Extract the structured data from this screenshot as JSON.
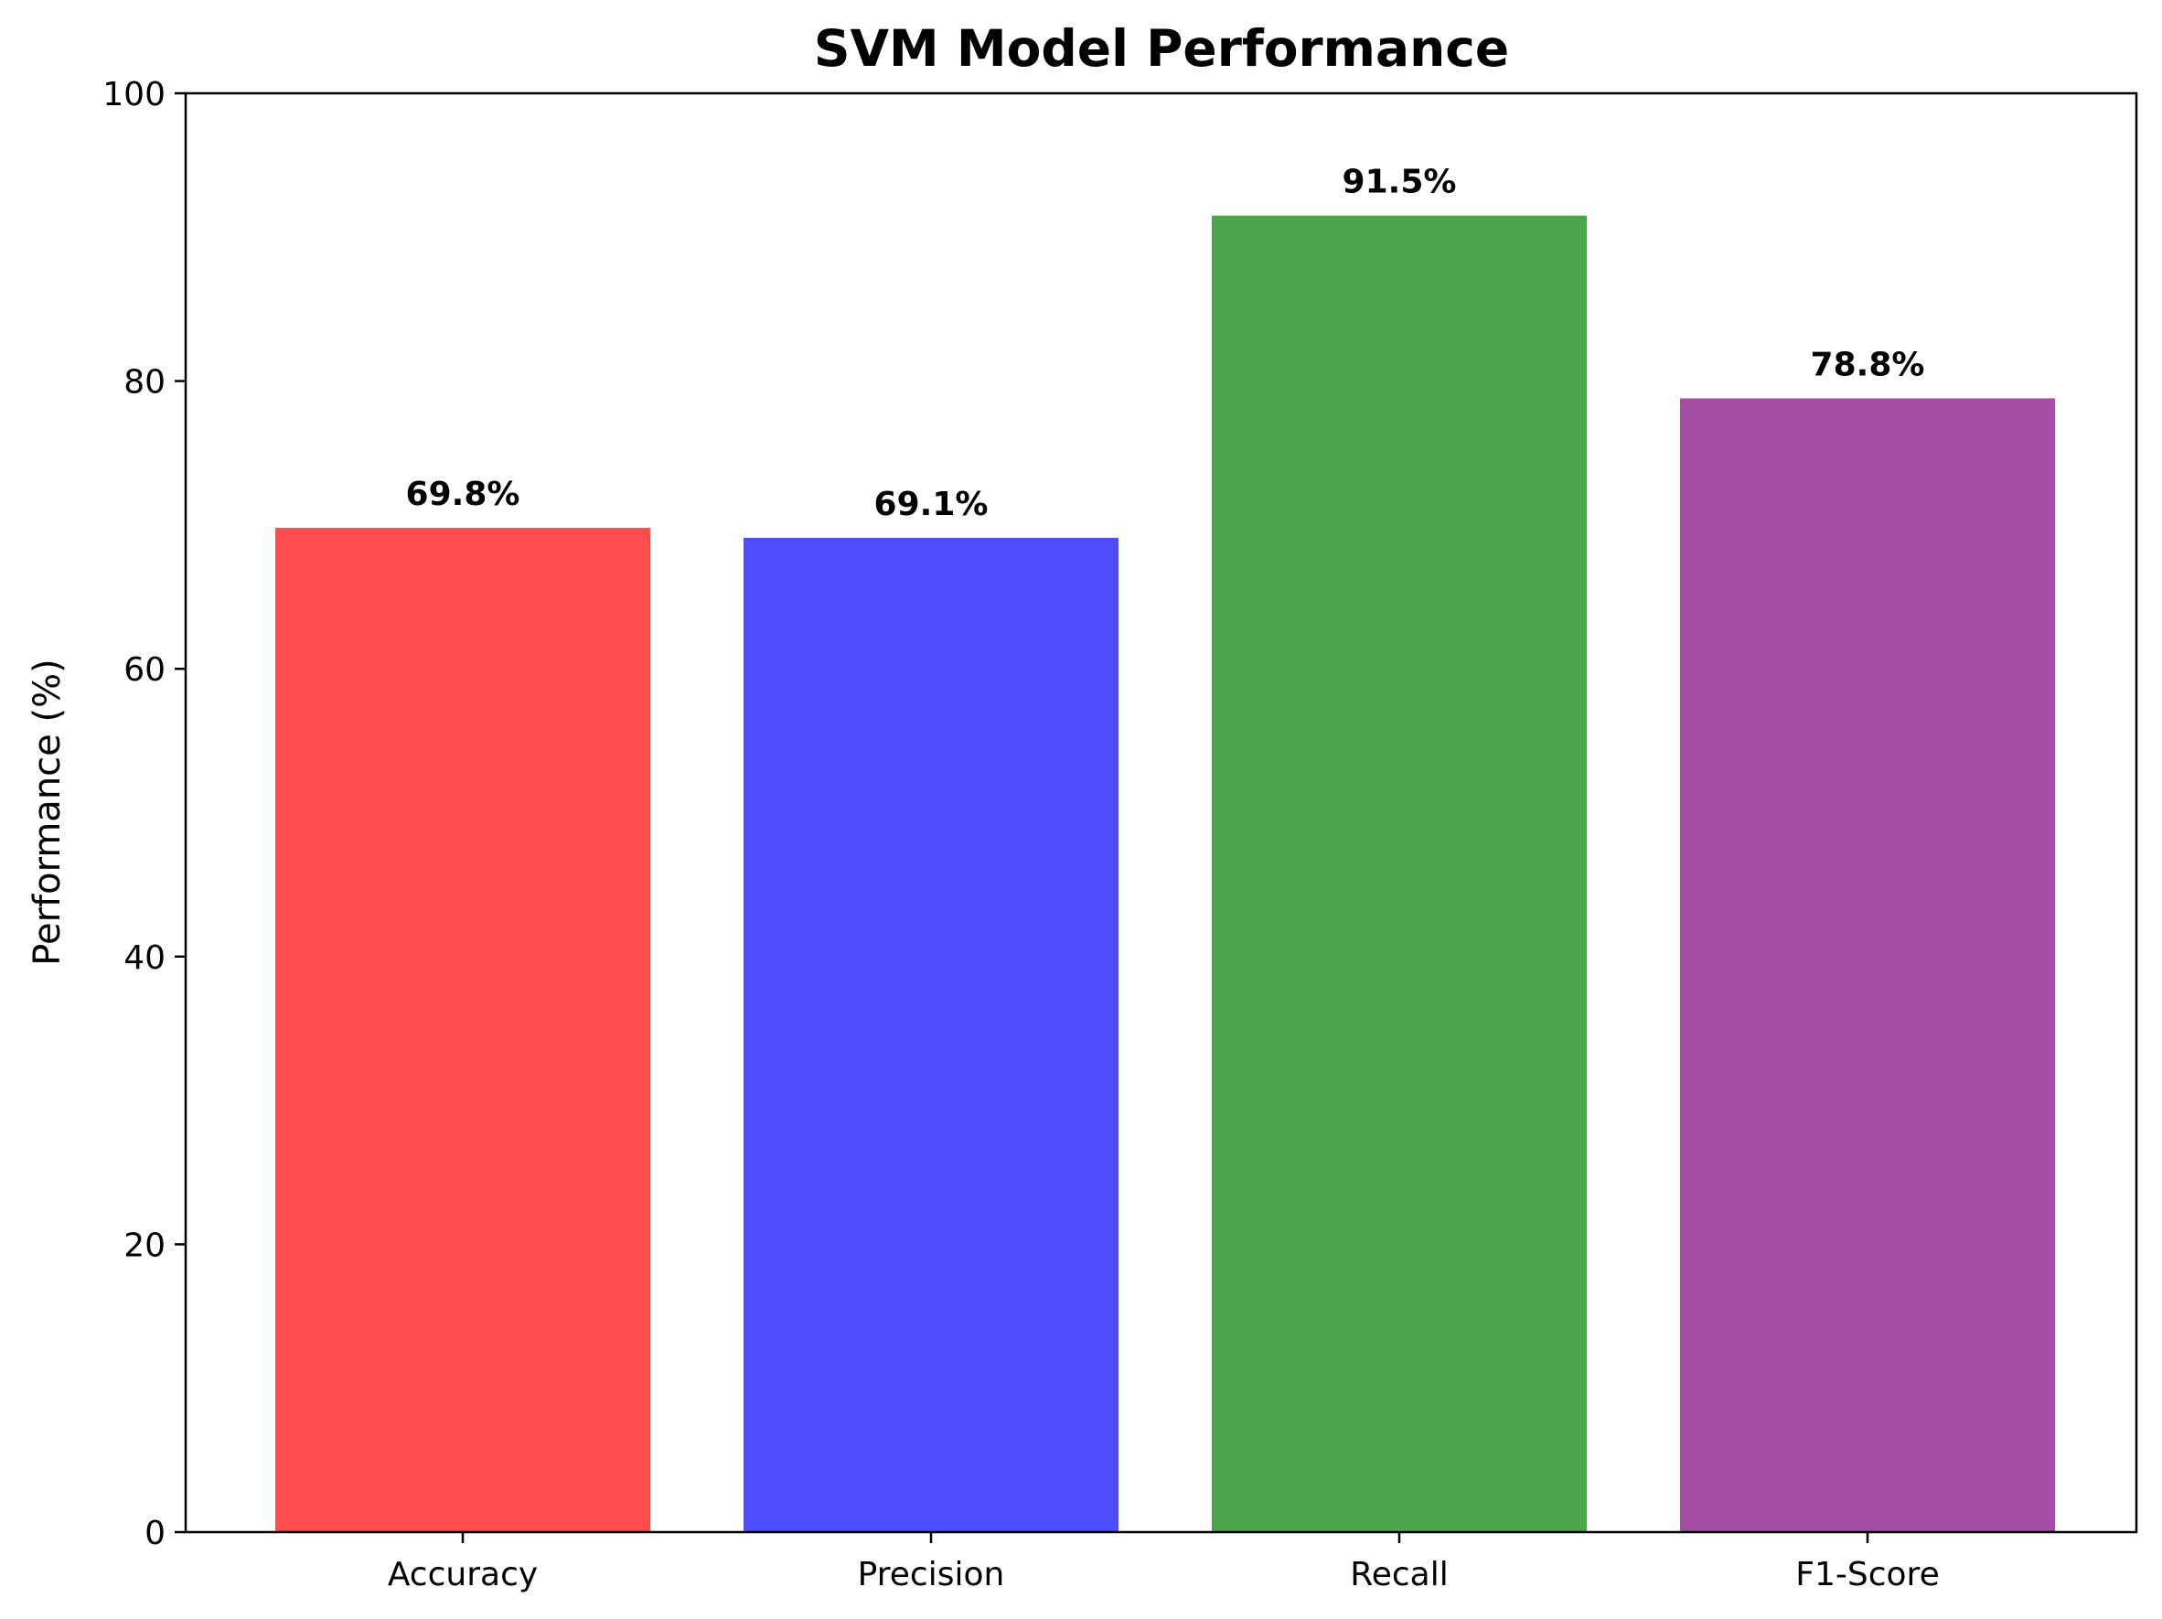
{
  "chart_data": {
    "type": "bar",
    "title": "SVM Model Performance",
    "xlabel": "",
    "ylabel": "Performance (%)",
    "categories": [
      "Accuracy",
      "Precision",
      "Recall",
      "F1-Score"
    ],
    "values": [
      69.8,
      69.1,
      91.5,
      78.8
    ],
    "value_labels": [
      "69.8%",
      "69.1%",
      "91.5%",
      "78.8%"
    ],
    "colors": [
      "#ff4d4d",
      "#4d4dff",
      "#4da64d",
      "#a64da6"
    ],
    "ylim": [
      0,
      100
    ],
    "yticks": [
      0,
      20,
      40,
      60,
      80,
      100
    ],
    "ytick_labels": [
      "0",
      "20",
      "40",
      "60",
      "80",
      "100"
    ],
    "grid": false,
    "legend": "none"
  }
}
